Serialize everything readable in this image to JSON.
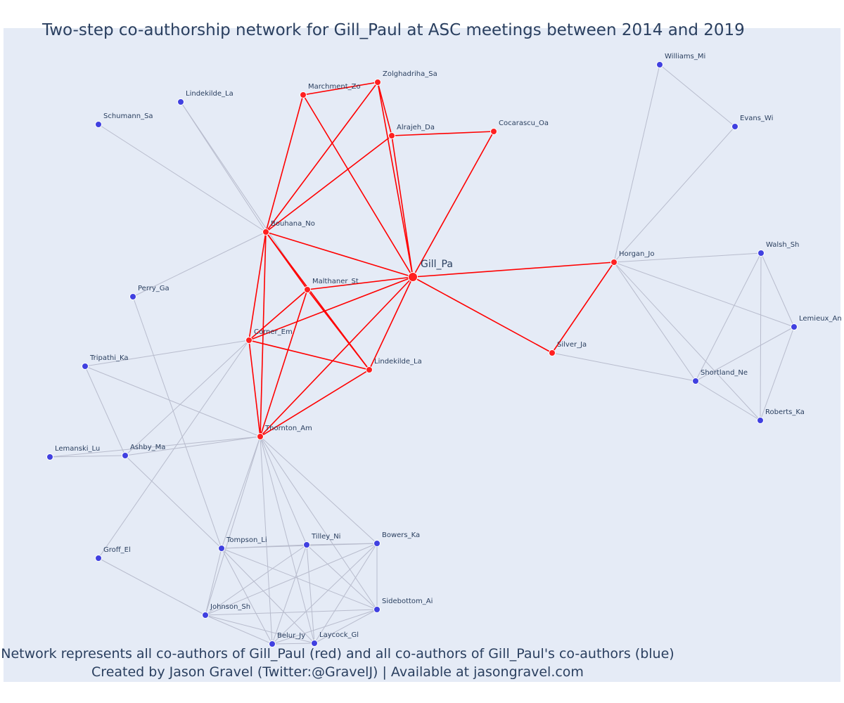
{
  "title": "Two-step co-authorship network for Gill_Paul at ASC meetings between 2014 and 2019",
  "footer": {
    "line1": "Network represents all co-authors of Gill_Paul (red) and all co-authors of Gill_Paul's co-authors (blue)",
    "line2": "Created by Jason Gravel (Twitter:@GravelJ) | Available at jasongravel.com"
  },
  "colors": {
    "first_step_node": "#ff2020",
    "second_step_node": "#4040e0",
    "first_step_edge": "#ff0000",
    "second_step_edge": "#b8bccd",
    "background": "#e5ebf6"
  },
  "nodes": [
    {
      "id": "Gill_Pa",
      "label": "Gill_Pa",
      "group": "ego"
    },
    {
      "id": "Zolghadriha_Sa",
      "label": "Zolghadriha_Sa",
      "group": "first"
    },
    {
      "id": "Marchment_Zo",
      "label": "Marchment_Zo",
      "group": "first"
    },
    {
      "id": "Alrajeh_Da",
      "label": "Alrajeh_Da",
      "group": "first"
    },
    {
      "id": "Cocarascu_Oa",
      "label": "Cocarascu_Oa",
      "group": "first"
    },
    {
      "id": "Bouhana_No",
      "label": "Bouhana_No",
      "group": "first"
    },
    {
      "id": "Malthaner_St",
      "label": "Malthaner_St",
      "group": "first"
    },
    {
      "id": "Corner_Em",
      "label": "Corner_Em",
      "group": "first"
    },
    {
      "id": "Lindekilde_La_r",
      "label": "Lindekilde_La",
      "group": "first"
    },
    {
      "id": "Thornton_Am",
      "label": "Thornton_Am",
      "group": "first"
    },
    {
      "id": "Horgan_Jo",
      "label": "Horgan_Jo",
      "group": "first"
    },
    {
      "id": "Silver_Ja",
      "label": "Silver_Ja",
      "group": "first"
    },
    {
      "id": "Lindekilde_La_b",
      "label": "Lindekilde_La",
      "group": "second"
    },
    {
      "id": "Schumann_Sa",
      "label": "Schumann_Sa",
      "group": "second"
    },
    {
      "id": "Perry_Ga",
      "label": "Perry_Ga",
      "group": "second"
    },
    {
      "id": "Tripathi_Ka",
      "label": "Tripathi_Ka",
      "group": "second"
    },
    {
      "id": "Lemanski_Lu",
      "label": "Lemanski_Lu",
      "group": "second"
    },
    {
      "id": "Ashby_Ma",
      "label": "Ashby_Ma",
      "group": "second"
    },
    {
      "id": "Groff_El",
      "label": "Groff_El",
      "group": "second"
    },
    {
      "id": "Tompson_Li",
      "label": "Tompson_Li",
      "group": "second"
    },
    {
      "id": "Tilley_Ni",
      "label": "Tilley_Ni",
      "group": "second"
    },
    {
      "id": "Bowers_Ka",
      "label": "Bowers_Ka",
      "group": "second"
    },
    {
      "id": "Sidebottom_Ai",
      "label": "Sidebottom_Ai",
      "group": "second"
    },
    {
      "id": "Johnson_Sh",
      "label": "Johnson_Sh",
      "group": "second"
    },
    {
      "id": "Belur_Jy",
      "label": "Belur_Jy",
      "group": "second"
    },
    {
      "id": "Laycock_Gl",
      "label": "Laycock_Gl",
      "group": "second"
    },
    {
      "id": "Williams_Mi",
      "label": "Williams_Mi",
      "group": "second"
    },
    {
      "id": "Evans_Wi",
      "label": "Evans_Wi",
      "group": "second"
    },
    {
      "id": "Walsh_Sh",
      "label": "Walsh_Sh",
      "group": "second"
    },
    {
      "id": "Lemieux_An",
      "label": "Lemieux_An",
      "group": "second"
    },
    {
      "id": "Shortland_Ne",
      "label": "Shortland_Ne",
      "group": "second"
    },
    {
      "id": "Roberts_Ka",
      "label": "Roberts_Ka",
      "group": "second"
    }
  ],
  "edges": [
    {
      "source": "Gill_Pa",
      "target": "Zolghadriha_Sa",
      "type": "first"
    },
    {
      "source": "Gill_Pa",
      "target": "Marchment_Zo",
      "type": "first"
    },
    {
      "source": "Gill_Pa",
      "target": "Alrajeh_Da",
      "type": "first"
    },
    {
      "source": "Gill_Pa",
      "target": "Cocarascu_Oa",
      "type": "first"
    },
    {
      "source": "Gill_Pa",
      "target": "Bouhana_No",
      "type": "first"
    },
    {
      "source": "Gill_Pa",
      "target": "Malthaner_St",
      "type": "first"
    },
    {
      "source": "Gill_Pa",
      "target": "Corner_Em",
      "type": "first"
    },
    {
      "source": "Gill_Pa",
      "target": "Lindekilde_La_r",
      "type": "first"
    },
    {
      "source": "Gill_Pa",
      "target": "Thornton_Am",
      "type": "first"
    },
    {
      "source": "Gill_Pa",
      "target": "Horgan_Jo",
      "type": "first"
    },
    {
      "source": "Gill_Pa",
      "target": "Silver_Ja",
      "type": "first"
    },
    {
      "source": "Marchment_Zo",
      "target": "Zolghadriha_Sa",
      "type": "first"
    },
    {
      "source": "Marchment_Zo",
      "target": "Bouhana_No",
      "type": "first"
    },
    {
      "source": "Zolghadriha_Sa",
      "target": "Bouhana_No",
      "type": "first"
    },
    {
      "source": "Zolghadriha_Sa",
      "target": "Alrajeh_Da",
      "type": "first"
    },
    {
      "source": "Alrajeh_Da",
      "target": "Cocarascu_Oa",
      "type": "first"
    },
    {
      "source": "Alrajeh_Da",
      "target": "Bouhana_No",
      "type": "first"
    },
    {
      "source": "Bouhana_No",
      "target": "Malthaner_St",
      "type": "first"
    },
    {
      "source": "Bouhana_No",
      "target": "Corner_Em",
      "type": "first"
    },
    {
      "source": "Bouhana_No",
      "target": "Lindekilde_La_r",
      "type": "first"
    },
    {
      "source": "Bouhana_No",
      "target": "Thornton_Am",
      "type": "first"
    },
    {
      "source": "Malthaner_St",
      "target": "Corner_Em",
      "type": "first"
    },
    {
      "source": "Malthaner_St",
      "target": "Lindekilde_La_r",
      "type": "first"
    },
    {
      "source": "Malthaner_St",
      "target": "Thornton_Am",
      "type": "first"
    },
    {
      "source": "Corner_Em",
      "target": "Lindekilde_La_r",
      "type": "first"
    },
    {
      "source": "Corner_Em",
      "target": "Thornton_Am",
      "type": "first"
    },
    {
      "source": "Lindekilde_La_r",
      "target": "Thornton_Am",
      "type": "first"
    },
    {
      "source": "Horgan_Jo",
      "target": "Silver_Ja",
      "type": "first"
    },
    {
      "source": "Bouhana_No",
      "target": "Lindekilde_La_b",
      "type": "second"
    },
    {
      "source": "Bouhana_No",
      "target": "Schumann_Sa",
      "type": "second"
    },
    {
      "source": "Bouhana_No",
      "target": "Perry_Ga",
      "type": "second"
    },
    {
      "source": "Malthaner_St",
      "target": "Lindekilde_La_b",
      "type": "second"
    },
    {
      "source": "Perry_Ga",
      "target": "Tompson_Li",
      "type": "second"
    },
    {
      "source": "Corner_Em",
      "target": "Tripathi_Ka",
      "type": "second"
    },
    {
      "source": "Corner_Em",
      "target": "Ashby_Ma",
      "type": "second"
    },
    {
      "source": "Corner_Em",
      "target": "Groff_El",
      "type": "second"
    },
    {
      "source": "Thornton_Am",
      "target": "Tripathi_Ka",
      "type": "second"
    },
    {
      "source": "Thornton_Am",
      "target": "Lemanski_Lu",
      "type": "second"
    },
    {
      "source": "Thornton_Am",
      "target": "Ashby_Ma",
      "type": "second"
    },
    {
      "source": "Tripathi_Ka",
      "target": "Ashby_Ma",
      "type": "second"
    },
    {
      "source": "Ashby_Ma",
      "target": "Lemanski_Lu",
      "type": "second"
    },
    {
      "source": "Ashby_Ma",
      "target": "Tompson_Li",
      "type": "second"
    },
    {
      "source": "Groff_El",
      "target": "Johnson_Sh",
      "type": "second"
    },
    {
      "source": "Thornton_Am",
      "target": "Tompson_Li",
      "type": "second"
    },
    {
      "source": "Thornton_Am",
      "target": "Tilley_Ni",
      "type": "second"
    },
    {
      "source": "Thornton_Am",
      "target": "Bowers_Ka",
      "type": "second"
    },
    {
      "source": "Thornton_Am",
      "target": "Sidebottom_Ai",
      "type": "second"
    },
    {
      "source": "Thornton_Am",
      "target": "Johnson_Sh",
      "type": "second"
    },
    {
      "source": "Thornton_Am",
      "target": "Belur_Jy",
      "type": "second"
    },
    {
      "source": "Thornton_Am",
      "target": "Laycock_Gl",
      "type": "second"
    },
    {
      "source": "Tompson_Li",
      "target": "Tilley_Ni",
      "type": "second"
    },
    {
      "source": "Tompson_Li",
      "target": "Bowers_Ka",
      "type": "second"
    },
    {
      "source": "Tompson_Li",
      "target": "Sidebottom_Ai",
      "type": "second"
    },
    {
      "source": "Tompson_Li",
      "target": "Johnson_Sh",
      "type": "second"
    },
    {
      "source": "Tompson_Li",
      "target": "Belur_Jy",
      "type": "second"
    },
    {
      "source": "Tompson_Li",
      "target": "Laycock_Gl",
      "type": "second"
    },
    {
      "source": "Tilley_Ni",
      "target": "Bowers_Ka",
      "type": "second"
    },
    {
      "source": "Tilley_Ni",
      "target": "Sidebottom_Ai",
      "type": "second"
    },
    {
      "source": "Tilley_Ni",
      "target": "Johnson_Sh",
      "type": "second"
    },
    {
      "source": "Tilley_Ni",
      "target": "Belur_Jy",
      "type": "second"
    },
    {
      "source": "Tilley_Ni",
      "target": "Laycock_Gl",
      "type": "second"
    },
    {
      "source": "Bowers_Ka",
      "target": "Sidebottom_Ai",
      "type": "second"
    },
    {
      "source": "Bowers_Ka",
      "target": "Johnson_Sh",
      "type": "second"
    },
    {
      "source": "Bowers_Ka",
      "target": "Belur_Jy",
      "type": "second"
    },
    {
      "source": "Bowers_Ka",
      "target": "Laycock_Gl",
      "type": "second"
    },
    {
      "source": "Sidebottom_Ai",
      "target": "Johnson_Sh",
      "type": "second"
    },
    {
      "source": "Sidebottom_Ai",
      "target": "Belur_Jy",
      "type": "second"
    },
    {
      "source": "Sidebottom_Ai",
      "target": "Laycock_Gl",
      "type": "second"
    },
    {
      "source": "Johnson_Sh",
      "target": "Belur_Jy",
      "type": "second"
    },
    {
      "source": "Johnson_Sh",
      "target": "Laycock_Gl",
      "type": "second"
    },
    {
      "source": "Belur_Jy",
      "target": "Laycock_Gl",
      "type": "second"
    },
    {
      "source": "Horgan_Jo",
      "target": "Williams_Mi",
      "type": "second"
    },
    {
      "source": "Horgan_Jo",
      "target": "Evans_Wi",
      "type": "second"
    },
    {
      "source": "Williams_Mi",
      "target": "Evans_Wi",
      "type": "second"
    },
    {
      "source": "Horgan_Jo",
      "target": "Walsh_Sh",
      "type": "second"
    },
    {
      "source": "Horgan_Jo",
      "target": "Lemieux_An",
      "type": "second"
    },
    {
      "source": "Horgan_Jo",
      "target": "Shortland_Ne",
      "type": "second"
    },
    {
      "source": "Horgan_Jo",
      "target": "Roberts_Ka",
      "type": "second"
    },
    {
      "source": "Walsh_Sh",
      "target": "Lemieux_An",
      "type": "second"
    },
    {
      "source": "Walsh_Sh",
      "target": "Shortland_Ne",
      "type": "second"
    },
    {
      "source": "Walsh_Sh",
      "target": "Roberts_Ka",
      "type": "second"
    },
    {
      "source": "Lemieux_An",
      "target": "Shortland_Ne",
      "type": "second"
    },
    {
      "source": "Lemieux_An",
      "target": "Roberts_Ka",
      "type": "second"
    },
    {
      "source": "Shortland_Ne",
      "target": "Roberts_Ka",
      "type": "second"
    },
    {
      "source": "Silver_Ja",
      "target": "Shortland_Ne",
      "type": "second"
    }
  ]
}
